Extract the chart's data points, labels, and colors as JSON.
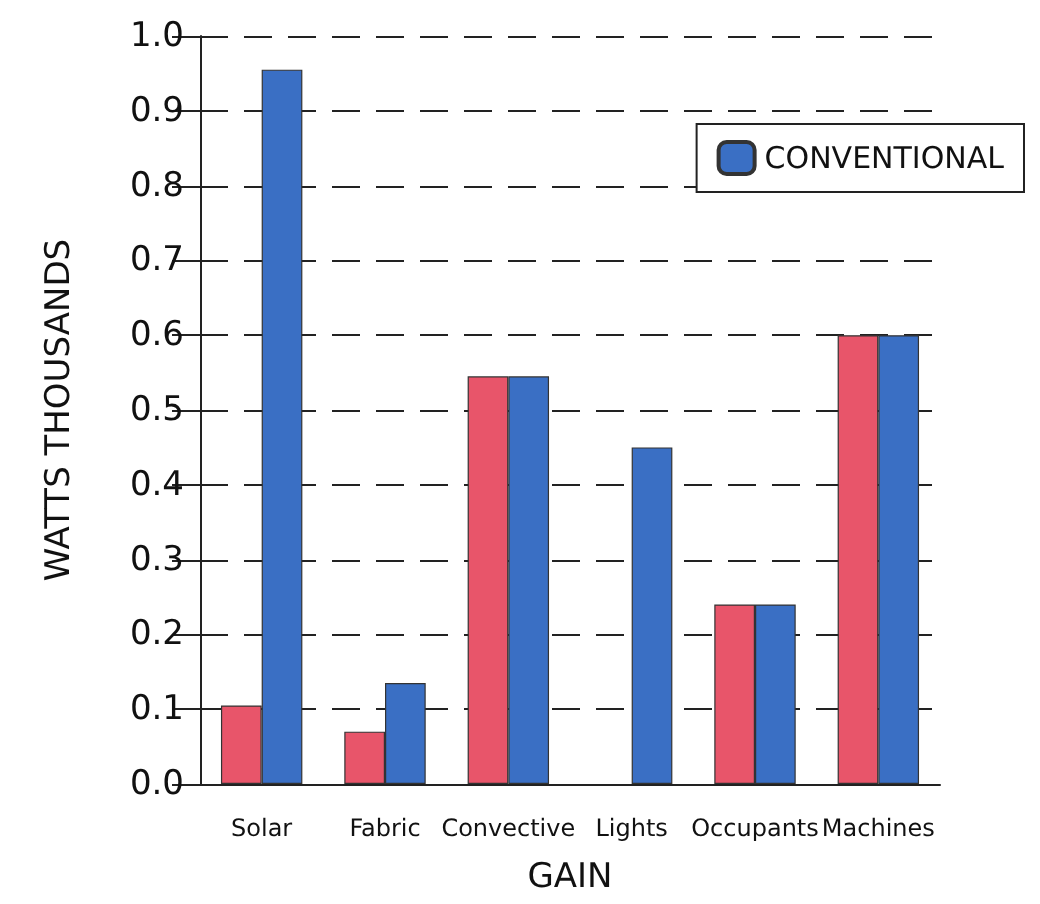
{
  "chart_data": {
    "type": "bar",
    "xlabel": "GAIN",
    "ylabel": "WATTS THOUSANDS",
    "categories": [
      "Solar",
      "Fabric",
      "Convective",
      "Lights",
      "Occupants",
      "Machines"
    ],
    "series": [
      {
        "color": "#e8556a",
        "values": [
          0.105,
          0.07,
          0.545,
          null,
          0.24,
          0.6
        ]
      },
      {
        "name": "CONVENTIONAL",
        "color": "#3a6fc4",
        "values": [
          0.955,
          0.135,
          0.545,
          0.45,
          0.24,
          0.6
        ]
      }
    ],
    "ylim": [
      0,
      1
    ],
    "yticks": [
      {
        "value": 0,
        "label": "0.0"
      },
      0.1,
      0.2,
      0.3,
      0.4,
      0.5,
      0.6,
      0.7,
      0.8,
      0.9,
      {
        "value": 1,
        "label": "1.0"
      }
    ],
    "grid": "y",
    "legend": "top right"
  }
}
